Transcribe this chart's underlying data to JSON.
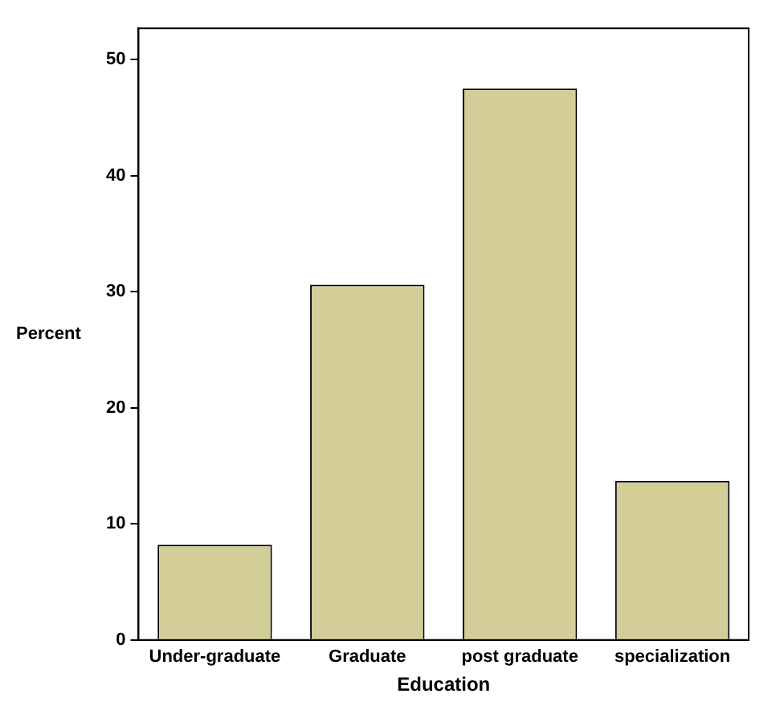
{
  "chart_data": {
    "type": "bar",
    "xlabel": "Education",
    "ylabel": "Percent",
    "categories": [
      "Under-graduate",
      "Graduate",
      "post graduate",
      "specialization"
    ],
    "values": [
      8.2,
      30.6,
      47.5,
      13.7
    ],
    "color": "#d3ce97",
    "ylim": [
      0,
      52.7
    ],
    "yticks": [
      0,
      10,
      20,
      30,
      40,
      50
    ],
    "grid": false,
    "legend": false
  }
}
